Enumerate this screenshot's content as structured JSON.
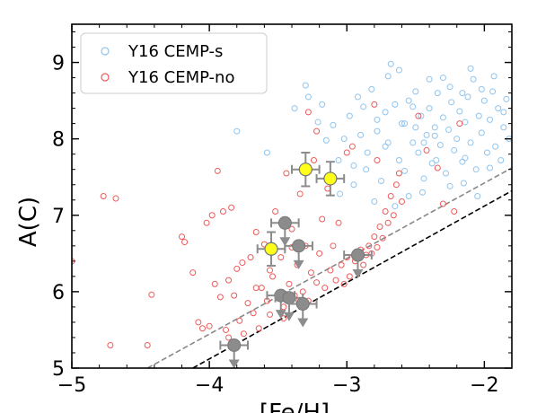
{
  "chart_data": {
    "type": "scatter",
    "xlabel": "[Fe/H]",
    "ylabel": "A(C)",
    "xlim": [
      -5.0,
      -1.8
    ],
    "ylim": [
      5.0,
      9.5
    ],
    "x_ticks": [
      -5,
      -4,
      -3,
      -2
    ],
    "x_tick_labels": [
      "−5",
      "−4",
      "−3",
      "−2"
    ],
    "y_ticks": [
      5,
      6,
      7,
      8,
      9
    ],
    "y_tick_labels": [
      "5",
      "6",
      "7",
      "8",
      "9"
    ],
    "grid": false,
    "legend_position": "top-left",
    "colors": {
      "cemp_s": "#8fc4ee",
      "cemp_no": "#ee5a5a",
      "yellow": "#ffff1a",
      "gray": "#8c8c8c",
      "errbar": "#8c8c8c"
    },
    "series": [
      {
        "name": "Y16 CEMP-s",
        "style": "open-circle",
        "points": [
          [
            -3.38,
            8.4
          ],
          [
            -3.28,
            8.55
          ],
          [
            -3.21,
            8.22
          ],
          [
            -3.15,
            7.98
          ],
          [
            -3.1,
            8.18
          ],
          [
            -3.06,
            7.72
          ],
          [
            -3.02,
            8.0
          ],
          [
            -2.98,
            8.3
          ],
          [
            -2.95,
            7.65
          ],
          [
            -2.9,
            8.05
          ],
          [
            -2.88,
            8.42
          ],
          [
            -2.85,
            7.82
          ],
          [
            -2.82,
            8.65
          ],
          [
            -2.78,
            8.1
          ],
          [
            -2.75,
            7.45
          ],
          [
            -2.72,
            8.35
          ],
          [
            -2.7,
            7.95
          ],
          [
            -2.68,
            8.98
          ],
          [
            -2.65,
            8.45
          ],
          [
            -2.62,
            7.72
          ],
          [
            -2.6,
            8.2
          ],
          [
            -2.58,
            7.58
          ],
          [
            -2.55,
            8.5
          ],
          [
            -2.52,
            7.95
          ],
          [
            -2.5,
            8.62
          ],
          [
            -2.48,
            7.82
          ],
          [
            -2.46,
            8.3
          ],
          [
            -2.44,
            7.48
          ],
          [
            -2.42,
            8.05
          ],
          [
            -2.4,
            8.4
          ],
          [
            -2.38,
            7.68
          ],
          [
            -2.36,
            8.15
          ],
          [
            -2.34,
            8.6
          ],
          [
            -2.32,
            7.92
          ],
          [
            -2.3,
            8.28
          ],
          [
            -2.28,
            7.55
          ],
          [
            -2.26,
            8.12
          ],
          [
            -2.24,
            8.48
          ],
          [
            -2.22,
            7.85
          ],
          [
            -2.2,
            8.0
          ],
          [
            -2.18,
            8.36
          ],
          [
            -2.16,
            7.7
          ],
          [
            -2.14,
            8.22
          ],
          [
            -2.12,
            8.55
          ],
          [
            -2.1,
            7.95
          ],
          [
            -2.08,
            8.78
          ],
          [
            -2.06,
            7.6
          ],
          [
            -2.04,
            8.3
          ],
          [
            -2.02,
            8.08
          ],
          [
            -2.0,
            8.5
          ],
          [
            -1.98,
            7.82
          ],
          [
            -1.96,
            8.25
          ],
          [
            -1.94,
            8.62
          ],
          [
            -1.92,
            7.9
          ],
          [
            -1.9,
            8.4
          ],
          [
            -1.88,
            7.72
          ],
          [
            -1.86,
            8.15
          ],
          [
            -1.84,
            8.52
          ],
          [
            -1.82,
            8.0
          ],
          [
            -2.25,
            7.38
          ],
          [
            -2.45,
            7.3
          ],
          [
            -2.65,
            7.12
          ],
          [
            -2.35,
            7.72
          ],
          [
            -2.55,
            7.25
          ],
          [
            -2.95,
            7.4
          ],
          [
            -3.05,
            7.28
          ],
          [
            -2.8,
            7.18
          ],
          [
            -2.15,
            7.42
          ],
          [
            -2.05,
            7.25
          ],
          [
            -2.7,
            8.82
          ],
          [
            -2.25,
            8.68
          ],
          [
            -2.1,
            8.92
          ],
          [
            -1.93,
            8.82
          ],
          [
            -2.4,
            8.78
          ],
          [
            -3.58,
            7.82
          ],
          [
            -3.8,
            8.1
          ],
          [
            -3.3,
            8.7
          ],
          [
            -3.18,
            8.45
          ],
          [
            -2.92,
            8.55
          ],
          [
            -2.62,
            8.9
          ],
          [
            -2.3,
            8.8
          ],
          [
            -2.02,
            8.65
          ],
          [
            -1.86,
            8.35
          ],
          [
            -2.16,
            8.6
          ],
          [
            -2.5,
            8.15
          ],
          [
            -2.72,
            7.9
          ],
          [
            -2.58,
            8.2
          ],
          [
            -2.36,
            8.04
          ],
          [
            -2.44,
            7.95
          ],
          [
            -2.14,
            7.75
          ],
          [
            -1.96,
            7.62
          ],
          [
            -2.52,
            8.42
          ],
          [
            -2.78,
            8.25
          ],
          [
            -2.86,
            7.6
          ]
        ]
      },
      {
        "name": "Y16 CEMP-no",
        "style": "open-circle",
        "points": [
          [
            -5.0,
            6.4
          ],
          [
            -4.77,
            7.25
          ],
          [
            -4.68,
            7.22
          ],
          [
            -4.72,
            5.3
          ],
          [
            -4.45,
            5.3
          ],
          [
            -4.42,
            5.96
          ],
          [
            -4.2,
            6.72
          ],
          [
            -4.18,
            6.65
          ],
          [
            -4.12,
            6.25
          ],
          [
            -4.08,
            5.6
          ],
          [
            -4.05,
            5.52
          ],
          [
            -4.02,
            6.9
          ],
          [
            -4.0,
            5.55
          ],
          [
            -3.98,
            7.0
          ],
          [
            -3.96,
            6.1
          ],
          [
            -3.94,
            7.58
          ],
          [
            -3.92,
            5.93
          ],
          [
            -3.9,
            7.05
          ],
          [
            -3.88,
            5.5
          ],
          [
            -3.86,
            5.4
          ],
          [
            -3.84,
            7.1
          ],
          [
            -3.82,
            5.95
          ],
          [
            -3.8,
            6.3
          ],
          [
            -3.78,
            5.62
          ],
          [
            -3.75,
            5.45
          ],
          [
            -3.72,
            5.85
          ],
          [
            -3.7,
            6.45
          ],
          [
            -3.68,
            5.72
          ],
          [
            -3.66,
            6.78
          ],
          [
            -3.64,
            5.52
          ],
          [
            -3.62,
            6.05
          ],
          [
            -3.6,
            6.62
          ],
          [
            -3.58,
            5.88
          ],
          [
            -3.56,
            5.7
          ],
          [
            -3.54,
            6.2
          ],
          [
            -3.52,
            7.05
          ],
          [
            -3.5,
            5.95
          ],
          [
            -3.48,
            6.45
          ],
          [
            -3.46,
            5.8
          ],
          [
            -3.44,
            7.55
          ],
          [
            -3.42,
            6.1
          ],
          [
            -3.4,
            6.82
          ],
          [
            -3.38,
            5.95
          ],
          [
            -3.36,
            6.35
          ],
          [
            -3.34,
            7.28
          ],
          [
            -3.32,
            6.0
          ],
          [
            -3.3,
            6.6
          ],
          [
            -3.28,
            5.88
          ],
          [
            -3.26,
            6.25
          ],
          [
            -3.24,
            7.72
          ],
          [
            -3.22,
            6.12
          ],
          [
            -3.2,
            6.5
          ],
          [
            -3.18,
            6.95
          ],
          [
            -3.16,
            6.05
          ],
          [
            -3.14,
            7.35
          ],
          [
            -3.12,
            6.28
          ],
          [
            -3.1,
            6.6
          ],
          [
            -3.08,
            6.15
          ],
          [
            -3.06,
            6.9
          ],
          [
            -3.04,
            6.35
          ],
          [
            -3.02,
            6.1
          ],
          [
            -3.0,
            6.45
          ],
          [
            -2.98,
            6.2
          ],
          [
            -2.96,
            7.9
          ],
          [
            -2.94,
            6.4
          ],
          [
            -2.92,
            6.25
          ],
          [
            -2.9,
            6.55
          ],
          [
            -2.88,
            6.35
          ],
          [
            -2.86,
            6.48
          ],
          [
            -2.84,
            6.6
          ],
          [
            -2.82,
            6.5
          ],
          [
            -2.8,
            6.72
          ],
          [
            -2.78,
            6.58
          ],
          [
            -2.76,
            6.85
          ],
          [
            -2.74,
            6.7
          ],
          [
            -2.72,
            7.05
          ],
          [
            -2.7,
            6.9
          ],
          [
            -2.68,
            7.25
          ],
          [
            -2.66,
            7.0
          ],
          [
            -2.64,
            7.4
          ],
          [
            -2.62,
            7.55
          ],
          [
            -2.6,
            7.18
          ],
          [
            -2.8,
            8.45
          ],
          [
            -2.78,
            7.72
          ],
          [
            -2.48,
            8.3
          ],
          [
            -2.18,
            8.2
          ],
          [
            -2.34,
            7.62
          ],
          [
            -2.3,
            7.15
          ],
          [
            -2.22,
            7.05
          ],
          [
            -2.42,
            7.85
          ],
          [
            -3.22,
            8.1
          ],
          [
            -3.28,
            8.35
          ],
          [
            -3.0,
            7.82
          ],
          [
            -3.4,
            6.58
          ],
          [
            -3.35,
            5.88
          ],
          [
            -3.56,
            6.28
          ],
          [
            -3.66,
            6.05
          ],
          [
            -3.76,
            6.38
          ],
          [
            -3.86,
            6.15
          ],
          [
            -3.46,
            5.65
          ]
        ]
      },
      {
        "name": "yellow-measurements",
        "style": "filled-circle-errorbar",
        "points": [
          {
            "x": -3.55,
            "y": 6.56,
            "xerr": 0.1,
            "yerr": 0.22
          },
          {
            "x": -3.3,
            "y": 7.6,
            "xerr": 0.1,
            "yerr": 0.22
          },
          {
            "x": -3.12,
            "y": 7.48,
            "xerr": 0.1,
            "yerr": 0.22
          }
        ]
      },
      {
        "name": "gray-upper-limits",
        "style": "filled-circle-arrow",
        "points": [
          {
            "x": -3.45,
            "y": 6.9,
            "xerr": 0.1
          },
          {
            "x": -3.35,
            "y": 6.6,
            "xerr": 0.1
          },
          {
            "x": -3.48,
            "y": 5.95,
            "xerr": 0.1
          },
          {
            "x": -3.42,
            "y": 5.92,
            "xerr": 0.1
          },
          {
            "x": -3.32,
            "y": 5.84,
            "xerr": 0.1
          },
          {
            "x": -2.92,
            "y": 6.48,
            "xerr": 0.1
          },
          {
            "x": -3.82,
            "y": 5.3,
            "xerr": 0.1
          }
        ]
      }
    ],
    "lines": [
      {
        "style": "dashed",
        "color": "#888888",
        "x": [
          -4.45,
          -1.8
        ],
        "y": [
          5.0,
          7.62
        ]
      },
      {
        "style": "dashed",
        "color": "#000000",
        "x": [
          -4.12,
          -1.8
        ],
        "y": [
          5.0,
          7.32
        ]
      }
    ]
  }
}
